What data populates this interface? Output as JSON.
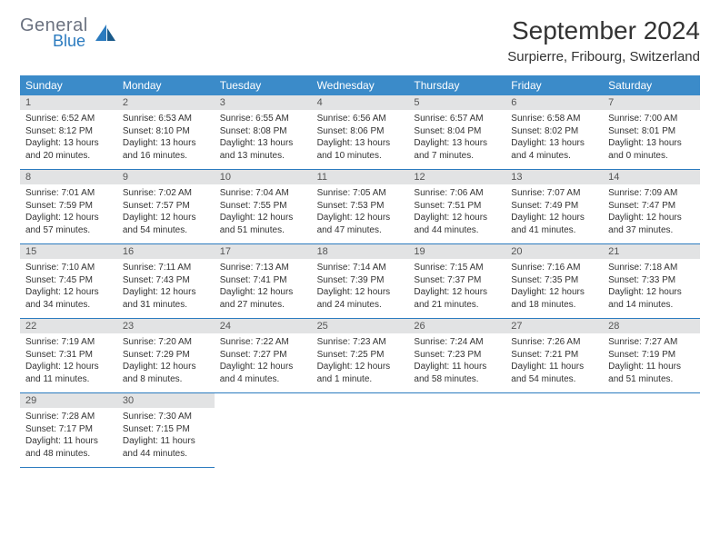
{
  "logo": {
    "line1": "General",
    "line2": "Blue"
  },
  "title": "September 2024",
  "location": "Surpierre, Fribourg, Switzerland",
  "colors": {
    "header_bg": "#3b8bc9",
    "header_text": "#ffffff",
    "daynum_bg": "#e2e3e4",
    "border": "#2b7bbf",
    "logo_gray": "#6b7280",
    "logo_blue": "#2b7bbf"
  },
  "weekdays": [
    "Sunday",
    "Monday",
    "Tuesday",
    "Wednesday",
    "Thursday",
    "Friday",
    "Saturday"
  ],
  "days": [
    {
      "d": "1",
      "sr": "6:52 AM",
      "ss": "8:12 PM",
      "dl": "13 hours and 20 minutes."
    },
    {
      "d": "2",
      "sr": "6:53 AM",
      "ss": "8:10 PM",
      "dl": "13 hours and 16 minutes."
    },
    {
      "d": "3",
      "sr": "6:55 AM",
      "ss": "8:08 PM",
      "dl": "13 hours and 13 minutes."
    },
    {
      "d": "4",
      "sr": "6:56 AM",
      "ss": "8:06 PM",
      "dl": "13 hours and 10 minutes."
    },
    {
      "d": "5",
      "sr": "6:57 AM",
      "ss": "8:04 PM",
      "dl": "13 hours and 7 minutes."
    },
    {
      "d": "6",
      "sr": "6:58 AM",
      "ss": "8:02 PM",
      "dl": "13 hours and 4 minutes."
    },
    {
      "d": "7",
      "sr": "7:00 AM",
      "ss": "8:01 PM",
      "dl": "13 hours and 0 minutes."
    },
    {
      "d": "8",
      "sr": "7:01 AM",
      "ss": "7:59 PM",
      "dl": "12 hours and 57 minutes."
    },
    {
      "d": "9",
      "sr": "7:02 AM",
      "ss": "7:57 PM",
      "dl": "12 hours and 54 minutes."
    },
    {
      "d": "10",
      "sr": "7:04 AM",
      "ss": "7:55 PM",
      "dl": "12 hours and 51 minutes."
    },
    {
      "d": "11",
      "sr": "7:05 AM",
      "ss": "7:53 PM",
      "dl": "12 hours and 47 minutes."
    },
    {
      "d": "12",
      "sr": "7:06 AM",
      "ss": "7:51 PM",
      "dl": "12 hours and 44 minutes."
    },
    {
      "d": "13",
      "sr": "7:07 AM",
      "ss": "7:49 PM",
      "dl": "12 hours and 41 minutes."
    },
    {
      "d": "14",
      "sr": "7:09 AM",
      "ss": "7:47 PM",
      "dl": "12 hours and 37 minutes."
    },
    {
      "d": "15",
      "sr": "7:10 AM",
      "ss": "7:45 PM",
      "dl": "12 hours and 34 minutes."
    },
    {
      "d": "16",
      "sr": "7:11 AM",
      "ss": "7:43 PM",
      "dl": "12 hours and 31 minutes."
    },
    {
      "d": "17",
      "sr": "7:13 AM",
      "ss": "7:41 PM",
      "dl": "12 hours and 27 minutes."
    },
    {
      "d": "18",
      "sr": "7:14 AM",
      "ss": "7:39 PM",
      "dl": "12 hours and 24 minutes."
    },
    {
      "d": "19",
      "sr": "7:15 AM",
      "ss": "7:37 PM",
      "dl": "12 hours and 21 minutes."
    },
    {
      "d": "20",
      "sr": "7:16 AM",
      "ss": "7:35 PM",
      "dl": "12 hours and 18 minutes."
    },
    {
      "d": "21",
      "sr": "7:18 AM",
      "ss": "7:33 PM",
      "dl": "12 hours and 14 minutes."
    },
    {
      "d": "22",
      "sr": "7:19 AM",
      "ss": "7:31 PM",
      "dl": "12 hours and 11 minutes."
    },
    {
      "d": "23",
      "sr": "7:20 AM",
      "ss": "7:29 PM",
      "dl": "12 hours and 8 minutes."
    },
    {
      "d": "24",
      "sr": "7:22 AM",
      "ss": "7:27 PM",
      "dl": "12 hours and 4 minutes."
    },
    {
      "d": "25",
      "sr": "7:23 AM",
      "ss": "7:25 PM",
      "dl": "12 hours and 1 minute."
    },
    {
      "d": "26",
      "sr": "7:24 AM",
      "ss": "7:23 PM",
      "dl": "11 hours and 58 minutes."
    },
    {
      "d": "27",
      "sr": "7:26 AM",
      "ss": "7:21 PM",
      "dl": "11 hours and 54 minutes."
    },
    {
      "d": "28",
      "sr": "7:27 AM",
      "ss": "7:19 PM",
      "dl": "11 hours and 51 minutes."
    },
    {
      "d": "29",
      "sr": "7:28 AM",
      "ss": "7:17 PM",
      "dl": "11 hours and 48 minutes."
    },
    {
      "d": "30",
      "sr": "7:30 AM",
      "ss": "7:15 PM",
      "dl": "11 hours and 44 minutes."
    }
  ],
  "labels": {
    "sunrise": "Sunrise: ",
    "sunset": "Sunset: ",
    "daylight": "Daylight: "
  }
}
